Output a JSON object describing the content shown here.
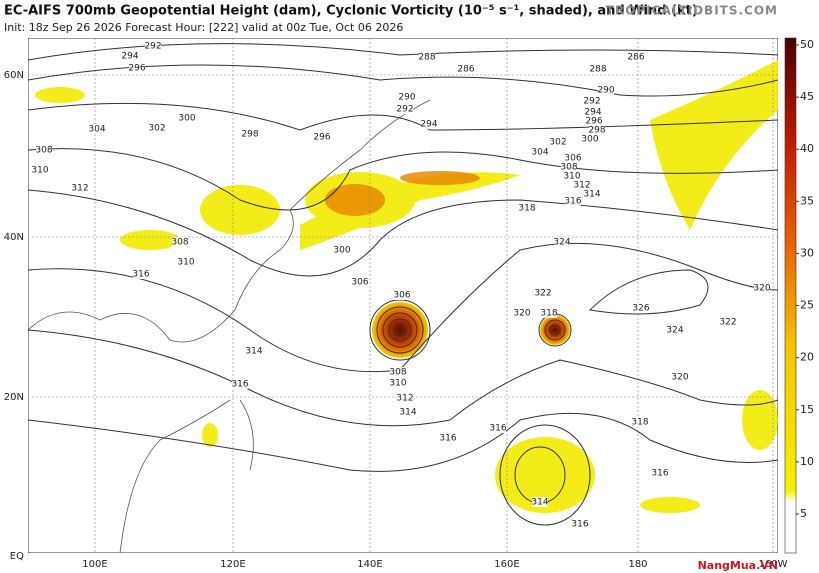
{
  "header": {
    "title": "EC-AIFS 700mb Geopotential Height (dam), Cyclonic Vorticity (10⁻⁵ s⁻¹, shaded), and Wind (kt)",
    "subtitle": "Init: 18z Sep 26 2026   Forecast Hour: [222]   valid at 00z Tue, Oct 06 2026",
    "site": "TROPICALTIDBITS.COM"
  },
  "map": {
    "lat_labels": [
      "60N",
      "40N",
      "20N",
      "EQ"
    ],
    "lon_labels": [
      "100E",
      "120E",
      "140E",
      "160E",
      "180",
      "160W"
    ],
    "contour_labels": [
      292,
      294,
      296,
      288,
      286,
      288,
      286,
      290,
      292,
      294,
      296,
      298,
      300,
      302,
      304,
      306,
      308,
      310,
      312,
      314,
      316,
      318,
      324,
      326,
      324,
      322,
      320,
      320,
      318,
      316,
      316,
      314,
      316,
      316,
      314,
      316,
      310,
      308,
      312,
      310,
      308,
      304,
      302,
      300,
      298,
      296,
      294,
      292,
      290,
      300,
      306,
      306,
      308,
      310,
      312,
      314,
      320,
      322,
      318,
      316
    ]
  },
  "colorbar": {
    "ticks": [
      5,
      10,
      15,
      20,
      25,
      30,
      35,
      40,
      45,
      50
    ]
  },
  "watermark": "NangMua.VN"
}
